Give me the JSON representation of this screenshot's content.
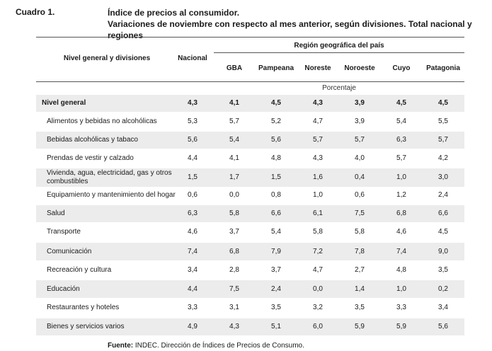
{
  "cuadro": "Cuadro 1.",
  "title": {
    "line1": "Índice de precios al consumidor.",
    "line2": "Variaciones de noviembre con respecto al mes anterior, según divisiones. Total nacional y regiones"
  },
  "header": {
    "division": "Nivel general y divisiones",
    "nacional": "Nacional",
    "region_group": "Región geográfica del país",
    "regions": [
      "GBA",
      "Pampeana",
      "Noreste",
      "Noroeste",
      "Cuyo",
      "Patagonia"
    ],
    "unit": "Porcentaje"
  },
  "rows": [
    {
      "name": "Nivel general",
      "values": [
        "4,3",
        "4,1",
        "4,5",
        "4,3",
        "3,9",
        "4,5",
        "4,5"
      ]
    },
    {
      "name": "Alimentos y bebidas no alcohólicas",
      "values": [
        "5,3",
        "5,7",
        "5,2",
        "4,7",
        "3,9",
        "5,4",
        "5,5"
      ]
    },
    {
      "name": "Bebidas alcohólicas y tabaco",
      "values": [
        "5,6",
        "5,4",
        "5,6",
        "5,7",
        "5,7",
        "6,3",
        "5,7"
      ]
    },
    {
      "name": "Prendas de vestir y calzado",
      "values": [
        "4,4",
        "4,1",
        "4,8",
        "4,3",
        "4,0",
        "5,7",
        "4,2"
      ]
    },
    {
      "name": "Vivienda, agua, electricidad, gas y otros",
      "name2": "combustibles",
      "values": [
        "1,5",
        "1,7",
        "1,5",
        "1,6",
        "0,4",
        "1,0",
        "3,0"
      ]
    },
    {
      "name": "Equipamiento y mantenimiento del hogar",
      "values": [
        "0,6",
        "0,0",
        "0,8",
        "1,0",
        "0,6",
        "1,2",
        "2,4"
      ]
    },
    {
      "name": "Salud",
      "values": [
        "6,3",
        "5,8",
        "6,6",
        "6,1",
        "7,5",
        "6,8",
        "6,6"
      ]
    },
    {
      "name": "Transporte",
      "values": [
        "4,6",
        "3,7",
        "5,4",
        "5,8",
        "5,8",
        "4,6",
        "4,5"
      ]
    },
    {
      "name": "Comunicación",
      "values": [
        "7,4",
        "6,8",
        "7,9",
        "7,2",
        "7,8",
        "7,4",
        "9,0"
      ]
    },
    {
      "name": "Recreación y cultura",
      "values": [
        "3,4",
        "2,8",
        "3,7",
        "4,7",
        "2,7",
        "4,8",
        "3,5"
      ]
    },
    {
      "name": "Educación",
      "values": [
        "4,4",
        "7,5",
        "2,4",
        "0,0",
        "1,4",
        "1,0",
        "0,2"
      ]
    },
    {
      "name": "Restaurantes y hoteles",
      "values": [
        "3,3",
        "3,1",
        "3,5",
        "3,2",
        "3,5",
        "3,3",
        "3,4"
      ]
    },
    {
      "name": "Bienes y servicios varios",
      "values": [
        "4,9",
        "4,3",
        "5,1",
        "6,0",
        "5,9",
        "5,9",
        "5,6"
      ]
    }
  ],
  "footer": {
    "label": "Fuente:",
    "text": " INDEC. Dirección de Índices de Precios de Consumo."
  }
}
